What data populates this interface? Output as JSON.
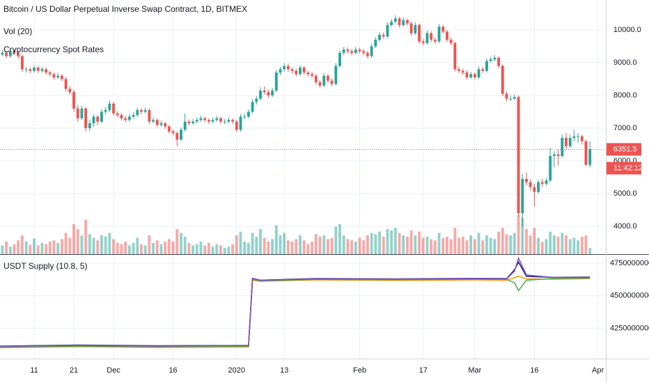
{
  "chart_data": [
    {
      "type": "candlestick",
      "title": "Bitcoin / US Dollar Perpetual Inverse Swap Contract, 1D, BITMEX",
      "indicator_labels": [
        "Vol (20)",
        "Cryptocurrency Spot Rates"
      ],
      "up_color": "#26a69a",
      "down_color": "#ef5350",
      "grid": true,
      "xlim": [
        0.4,
        153
      ],
      "xticks": [
        {
          "value": 9,
          "label": "11"
        },
        {
          "value": 19,
          "label": "21"
        },
        {
          "value": 29,
          "label": "Dec"
        },
        {
          "value": 44,
          "label": "16"
        },
        {
          "value": 60,
          "label": "2020"
        },
        {
          "value": 72,
          "label": "13"
        },
        {
          "value": 91,
          "label": "Feb"
        },
        {
          "value": 107,
          "label": "17"
        },
        {
          "value": 120,
          "label": "Mar"
        },
        {
          "value": 135,
          "label": "16"
        },
        {
          "value": 151,
          "label": "Apr"
        }
      ],
      "ylim": [
        3150,
        10915
      ],
      "yticks": [
        {
          "value": 4000,
          "label": "4000.0"
        },
        {
          "value": 5000,
          "label": "5000.0"
        },
        {
          "value": 6000,
          "label": "6000.0"
        },
        {
          "value": 7000,
          "label": "7000.0"
        },
        {
          "value": 8000,
          "label": "8000.0"
        },
        {
          "value": 9000,
          "label": "9000.0"
        },
        {
          "value": 10000,
          "label": "10000.0"
        }
      ],
      "last_price": {
        "value": 6351.5,
        "label": "6351.5"
      },
      "countdown": "11:42:12",
      "volume_lim": [
        0,
        100
      ],
      "candles": [
        [
          9200,
          9330,
          9150,
          9250
        ],
        [
          9250,
          9380,
          9200,
          9300
        ],
        [
          9300,
          9370,
          9130,
          9200
        ],
        [
          9200,
          9420,
          9150,
          9350
        ],
        [
          9350,
          9400,
          9230,
          9300
        ],
        [
          9300,
          9360,
          9120,
          9200
        ],
        [
          9200,
          9260,
          8720,
          8800
        ],
        [
          8800,
          8880,
          8700,
          8800
        ],
        [
          8800,
          8860,
          8680,
          8750
        ],
        [
          8750,
          8920,
          8700,
          8850
        ],
        [
          8850,
          8900,
          8680,
          8750
        ],
        [
          8750,
          8870,
          8700,
          8800
        ],
        [
          8800,
          8850,
          8630,
          8700
        ],
        [
          8700,
          8760,
          8580,
          8650
        ],
        [
          8650,
          8700,
          8480,
          8550
        ],
        [
          8550,
          8680,
          8500,
          8600
        ],
        [
          8600,
          8660,
          8430,
          8500
        ],
        [
          8500,
          8560,
          8120,
          8200
        ],
        [
          8200,
          8280,
          8030,
          8100
        ],
        [
          8100,
          8180,
          7500,
          7600
        ],
        [
          7600,
          7700,
          7200,
          7300
        ],
        [
          7300,
          7680,
          7250,
          7600
        ],
        [
          7600,
          7650,
          6900,
          7000
        ],
        [
          7000,
          7250,
          6900,
          7150
        ],
        [
          7150,
          7420,
          7050,
          7350
        ],
        [
          7350,
          7400,
          7100,
          7200
        ],
        [
          7200,
          7580,
          7150,
          7500
        ],
        [
          7500,
          7650,
          7420,
          7550
        ],
        [
          7550,
          7850,
          7500,
          7750
        ],
        [
          7750,
          7800,
          7380,
          7450
        ],
        [
          7450,
          7520,
          7330,
          7400
        ],
        [
          7400,
          7460,
          7230,
          7300
        ],
        [
          7300,
          7380,
          7180,
          7250
        ],
        [
          7250,
          7430,
          7200,
          7350
        ],
        [
          7350,
          7480,
          7300,
          7400
        ],
        [
          7400,
          7620,
          7350,
          7550
        ],
        [
          7550,
          7600,
          7420,
          7500
        ],
        [
          7500,
          7630,
          7450,
          7550
        ],
        [
          7550,
          7600,
          7130,
          7200
        ],
        [
          7200,
          7330,
          7150,
          7250
        ],
        [
          7250,
          7300,
          7030,
          7100
        ],
        [
          7100,
          7230,
          7050,
          7150
        ],
        [
          7150,
          7200,
          6980,
          7050
        ],
        [
          7050,
          7100,
          6830,
          6900
        ],
        [
          6900,
          6960,
          6780,
          6850
        ],
        [
          6850,
          6900,
          6450,
          6650
        ],
        [
          6650,
          7020,
          6600,
          6950
        ],
        [
          6950,
          7450,
          6900,
          7200
        ],
        [
          7200,
          7270,
          7080,
          7150
        ],
        [
          7150,
          7280,
          7100,
          7200
        ],
        [
          7200,
          7320,
          7150,
          7250
        ],
        [
          7250,
          7380,
          7200,
          7300
        ],
        [
          7300,
          7350,
          7180,
          7250
        ],
        [
          7250,
          7300,
          7130,
          7200
        ],
        [
          7200,
          7320,
          7150,
          7250
        ],
        [
          7250,
          7370,
          7200,
          7300
        ],
        [
          7300,
          7350,
          7130,
          7200
        ],
        [
          7200,
          7280,
          7120,
          7200
        ],
        [
          7200,
          7330,
          7150,
          7250
        ],
        [
          7250,
          7300,
          7130,
          7200
        ],
        [
          7200,
          7250,
          6880,
          6950
        ],
        [
          6950,
          7420,
          6900,
          7350
        ],
        [
          7350,
          7450,
          7280,
          7350
        ],
        [
          7350,
          7580,
          7300,
          7500
        ],
        [
          7500,
          7880,
          7450,
          7800
        ],
        [
          7800,
          7980,
          7720,
          7900
        ],
        [
          7900,
          8250,
          7850,
          8150
        ],
        [
          8150,
          8280,
          8030,
          8100
        ],
        [
          8100,
          8180,
          7920,
          8000
        ],
        [
          8000,
          8230,
          7950,
          8150
        ],
        [
          8150,
          8780,
          8100,
          8700
        ],
        [
          8700,
          8880,
          8620,
          8800
        ],
        [
          8800,
          8980,
          8730,
          8900
        ],
        [
          8900,
          8970,
          8720,
          8800
        ],
        [
          8800,
          8850,
          8670,
          8750
        ],
        [
          8750,
          8820,
          8580,
          8650
        ],
        [
          8650,
          8920,
          8600,
          8850
        ],
        [
          8850,
          8900,
          8630,
          8700
        ],
        [
          8700,
          8760,
          8580,
          8650
        ],
        [
          8650,
          8720,
          8530,
          8600
        ],
        [
          8600,
          8660,
          8330,
          8400
        ],
        [
          8400,
          8470,
          8230,
          8300
        ],
        [
          8300,
          8680,
          8250,
          8600
        ],
        [
          8600,
          8650,
          8380,
          8450
        ],
        [
          8450,
          8520,
          8280,
          8350
        ],
        [
          8350,
          8980,
          8300,
          8900
        ],
        [
          8900,
          9380,
          8850,
          9300
        ],
        [
          9300,
          9480,
          9230,
          9400
        ],
        [
          9400,
          9470,
          9280,
          9350
        ],
        [
          9350,
          9420,
          9230,
          9300
        ],
        [
          9300,
          9480,
          9250,
          9400
        ],
        [
          9400,
          9450,
          9280,
          9350
        ],
        [
          9350,
          9420,
          9230,
          9300
        ],
        [
          9300,
          9360,
          9130,
          9200
        ],
        [
          9200,
          9580,
          9150,
          9500
        ],
        [
          9500,
          9780,
          9450,
          9700
        ],
        [
          9700,
          9930,
          9650,
          9850
        ],
        [
          9850,
          9920,
          9730,
          9800
        ],
        [
          9800,
          10230,
          9750,
          10150
        ],
        [
          10150,
          10330,
          10100,
          10250
        ],
        [
          10250,
          10450,
          10200,
          10350
        ],
        [
          10350,
          10400,
          10080,
          10150
        ],
        [
          10150,
          10380,
          10100,
          10300
        ],
        [
          10300,
          10350,
          10130,
          10200
        ],
        [
          10200,
          10260,
          9830,
          9900
        ],
        [
          9900,
          10230,
          9850,
          10150
        ],
        [
          10150,
          10200,
          9580,
          9650
        ],
        [
          9650,
          9720,
          9530,
          9600
        ],
        [
          9600,
          9980,
          9550,
          9900
        ],
        [
          9900,
          9960,
          9630,
          9700
        ],
        [
          9700,
          9760,
          9580,
          9650
        ],
        [
          9650,
          10180,
          9600,
          10100
        ],
        [
          10100,
          10150,
          9880,
          9950
        ],
        [
          9950,
          10000,
          9630,
          9700
        ],
        [
          9700,
          9760,
          9530,
          9600
        ],
        [
          9600,
          9650,
          8730,
          8800
        ],
        [
          8800,
          8870,
          8680,
          8750
        ],
        [
          8750,
          8820,
          8630,
          8700
        ],
        [
          8700,
          8760,
          8480,
          8550
        ],
        [
          8550,
          8720,
          8500,
          8650
        ],
        [
          8650,
          8700,
          8480,
          8550
        ],
        [
          8550,
          8880,
          8500,
          8800
        ],
        [
          8800,
          8870,
          8680,
          8750
        ],
        [
          8750,
          9130,
          8700,
          9050
        ],
        [
          9050,
          9180,
          9000,
          9100
        ],
        [
          9100,
          9230,
          9050,
          9150
        ],
        [
          9150,
          9200,
          8830,
          8900
        ],
        [
          8900,
          8950,
          7980,
          8050
        ],
        [
          8050,
          8120,
          7830,
          7900
        ],
        [
          7900,
          8000,
          7830,
          7900
        ],
        [
          7900,
          8020,
          7850,
          7950
        ],
        [
          7950,
          8000,
          4300,
          4400
        ],
        [
          4400,
          5600,
          4000,
          5450
        ],
        [
          5450,
          5650,
          5250,
          5350
        ],
        [
          5350,
          5450,
          5100,
          5200
        ],
        [
          5200,
          5300,
          4600,
          5050
        ],
        [
          5050,
          5420,
          5000,
          5350
        ],
        [
          5350,
          5450,
          5200,
          5300
        ],
        [
          5300,
          5480,
          5250,
          5400
        ],
        [
          5400,
          6400,
          5350,
          6150
        ],
        [
          6150,
          6300,
          5800,
          6200
        ],
        [
          6200,
          6350,
          5850,
          6150
        ],
        [
          6150,
          6800,
          6100,
          6700
        ],
        [
          6700,
          6850,
          6350,
          6450
        ],
        [
          6450,
          6800,
          6400,
          6700
        ],
        [
          6700,
          6950,
          6600,
          6750
        ],
        [
          6750,
          6850,
          6550,
          6750
        ],
        [
          6750,
          6800,
          6500,
          6600
        ],
        [
          6600,
          6650,
          5850,
          5880
        ],
        [
          5880,
          6600,
          5800,
          6351.5
        ]
      ],
      "volume": [
        18,
        14,
        20,
        12,
        16,
        22,
        30,
        20,
        15,
        25,
        14,
        18,
        16,
        20,
        22,
        18,
        24,
        34,
        26,
        48,
        40,
        30,
        55,
        32,
        26,
        22,
        30,
        28,
        34,
        24,
        18,
        16,
        20,
        14,
        18,
        26,
        16,
        14,
        30,
        18,
        22,
        16,
        20,
        24,
        20,
        40,
        34,
        28,
        18,
        14,
        16,
        20,
        14,
        18,
        12,
        16,
        14,
        10,
        12,
        16,
        30,
        36,
        20,
        18,
        34,
        28,
        40,
        26,
        20,
        24,
        46,
        30,
        34,
        22,
        20,
        24,
        30,
        22,
        16,
        20,
        32,
        28,
        30,
        24,
        26,
        44,
        48,
        30,
        24,
        22,
        20,
        26,
        22,
        30,
        34,
        32,
        36,
        28,
        40,
        38,
        42,
        34,
        30,
        28,
        38,
        30,
        36,
        26,
        28,
        24,
        22,
        34,
        26,
        28,
        24,
        42,
        26,
        28,
        22,
        30,
        24,
        34,
        22,
        30,
        26,
        24,
        36,
        42,
        32,
        30,
        34,
        62,
        58,
        40,
        30,
        42,
        26,
        20,
        24,
        36,
        30,
        28,
        34,
        30,
        24,
        26,
        22,
        28,
        30,
        10
      ]
    },
    {
      "type": "line",
      "title": "USDT Supply (10.8, 5)",
      "grid": true,
      "xlim": [
        0.4,
        153
      ],
      "ylim": [
        4016000000,
        4815000000
      ],
      "yticks": [
        4250000000,
        4500000000,
        4750000000
      ],
      "series": [
        {
          "color": "#ff9800",
          "x": [
            0,
            20,
            40,
            63,
            64,
            66,
            80,
            100,
            120,
            128,
            130,
            131,
            133,
            140,
            149
          ],
          "values": [
            4100000000,
            4108000000,
            4102000000,
            4106000000,
            4620000000,
            4612000000,
            4622000000,
            4618000000,
            4622000000,
            4620000000,
            4640000000,
            4650000000,
            4630000000,
            4628000000,
            4632000000
          ]
        },
        {
          "color": "#4caf50",
          "x": [
            0,
            20,
            40,
            63,
            64,
            66,
            80,
            100,
            120,
            128,
            130,
            131,
            133,
            140,
            149
          ],
          "values": [
            4106000000,
            4112000000,
            4108000000,
            4112000000,
            4628000000,
            4615000000,
            4626000000,
            4624000000,
            4628000000,
            4626000000,
            4600000000,
            4540000000,
            4620000000,
            4634000000,
            4636000000
          ]
        },
        {
          "color": "#1a237e",
          "x": [
            0,
            20,
            40,
            63,
            64,
            66,
            80,
            100,
            120,
            128,
            130,
            131,
            133,
            140,
            149
          ],
          "values": [
            4112000000,
            4120000000,
            4115000000,
            4118000000,
            4634000000,
            4620000000,
            4632000000,
            4630000000,
            4634000000,
            4632000000,
            4700000000,
            4760000000,
            4650000000,
            4642000000,
            4644000000
          ]
        },
        {
          "color": "#7e57c2",
          "x": [
            0,
            20,
            40,
            63,
            64,
            66,
            80,
            100,
            120,
            128,
            130,
            131,
            133,
            140,
            149
          ],
          "values": [
            4110000000,
            4118000000,
            4112000000,
            4118000000,
            4632000000,
            4618000000,
            4630000000,
            4628000000,
            4632000000,
            4630000000,
            4690000000,
            4790000000,
            4660000000,
            4640000000,
            4640000000
          ]
        }
      ]
    }
  ]
}
